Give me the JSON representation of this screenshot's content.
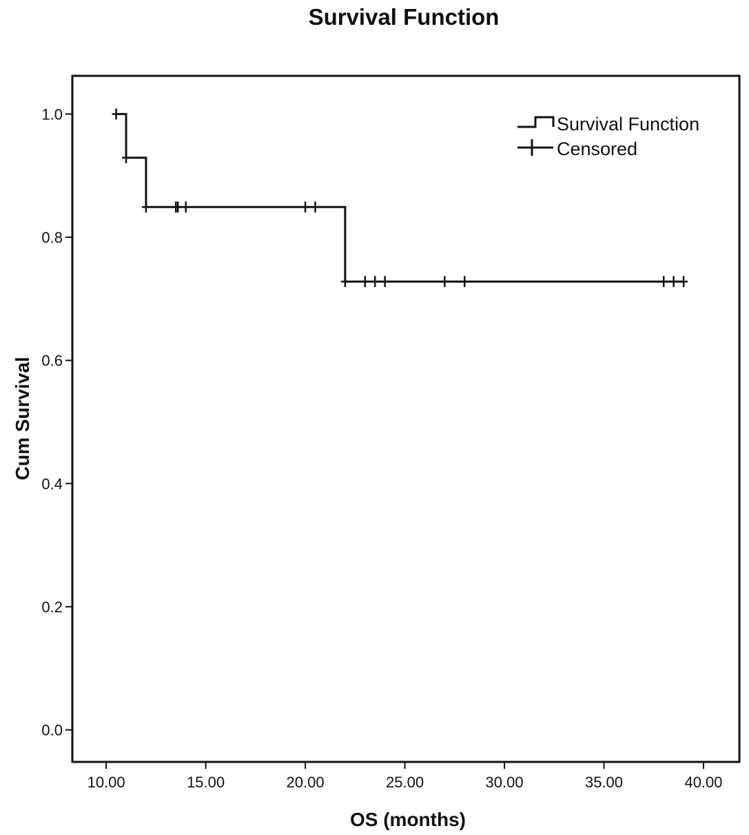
{
  "chart_data": {
    "type": "line",
    "title": "Survival Function",
    "xlabel": "OS (months)",
    "ylabel": "Cum Survival",
    "xlim": [
      8.3,
      41.8
    ],
    "ylim": [
      -0.052,
      1.062
    ],
    "xticks": [
      10,
      15,
      20,
      25,
      30,
      35,
      40
    ],
    "xtick_labels": [
      "10.00",
      "15.00",
      "20.00",
      "25.00",
      "30.00",
      "35.00",
      "40.00"
    ],
    "yticks": [
      0.0,
      0.2,
      0.4,
      0.6,
      0.8,
      1.0
    ],
    "ytick_labels": [
      "0.0",
      "0.2",
      "0.4",
      "0.6",
      "0.8",
      "1.0"
    ],
    "grid": false,
    "legend": {
      "position": "top-right",
      "entries": [
        "Survival Function",
        "Censored"
      ]
    },
    "series": [
      {
        "name": "Survival Function",
        "step": "post",
        "x": [
          10.5,
          11.0,
          12.0,
          22.0,
          39.0
        ],
        "y": [
          1.0,
          0.929,
          0.849,
          0.728,
          0.728
        ]
      },
      {
        "name": "Censored",
        "marker": "+",
        "x": [
          10.5,
          11.0,
          12.0,
          13.5,
          13.6,
          14.0,
          20.0,
          20.5,
          22.0,
          23.0,
          23.5,
          24.0,
          27.0,
          28.0,
          38.0,
          38.5,
          39.0
        ],
        "y": [
          1.0,
          0.929,
          0.849,
          0.849,
          0.849,
          0.849,
          0.849,
          0.849,
          0.728,
          0.728,
          0.728,
          0.728,
          0.728,
          0.728,
          0.728,
          0.728,
          0.728
        ]
      }
    ]
  }
}
